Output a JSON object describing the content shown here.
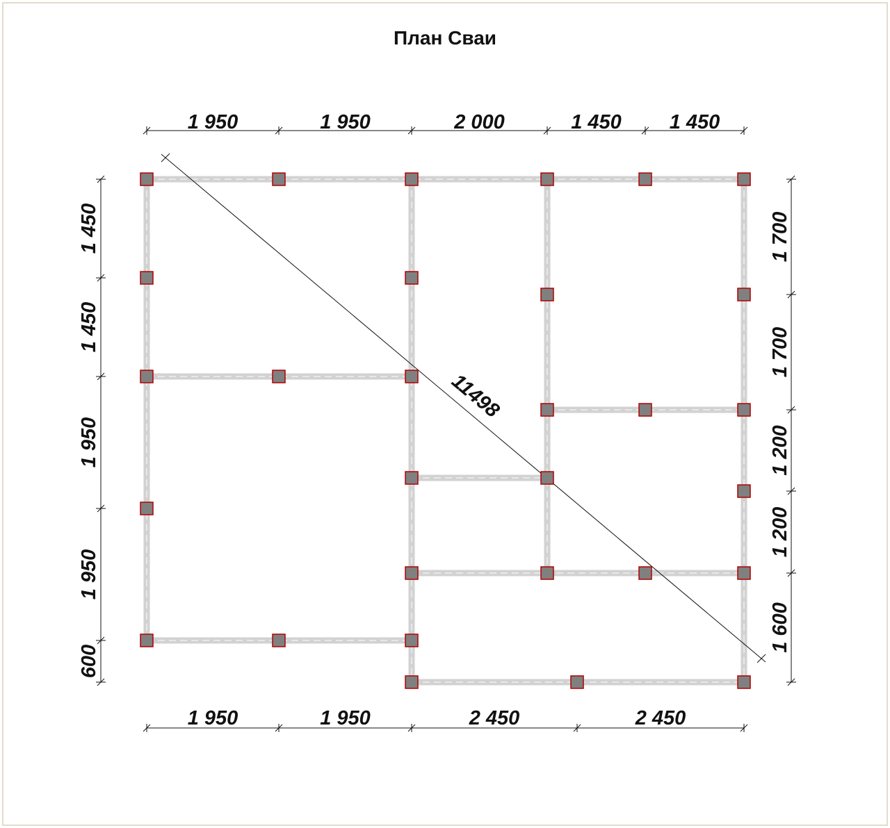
{
  "title": "План Сваи",
  "dimensions": {
    "top": [
      "1 950",
      "1 950",
      "2 000",
      "1 450",
      "1 450"
    ],
    "bottom": [
      "1 950",
      "1 950",
      "2 450",
      "2 450"
    ],
    "left": [
      "1 450",
      "1 450",
      "1 950",
      "1 950",
      "600"
    ],
    "right": [
      "1 700",
      "1 700",
      "1 200",
      "1 200",
      "1 600"
    ],
    "diagonal": "11498"
  }
}
